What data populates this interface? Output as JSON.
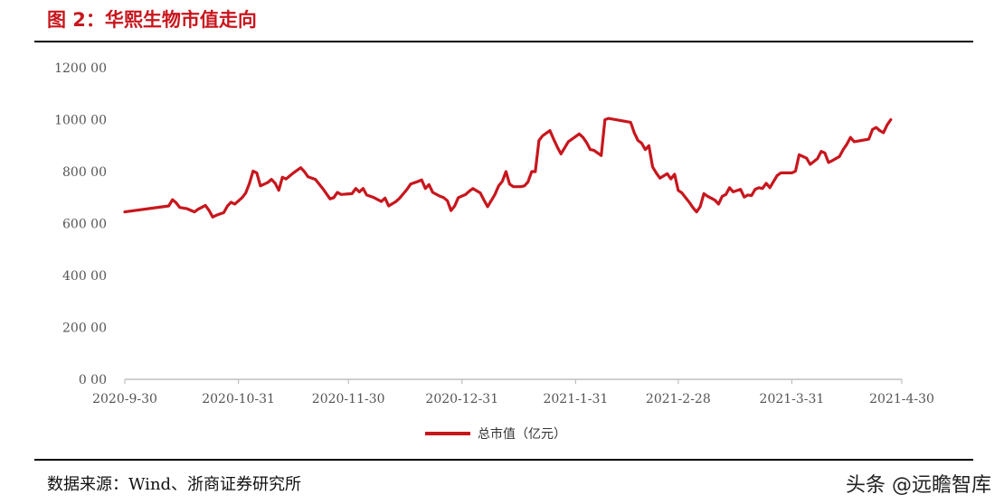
{
  "figure": {
    "title": "图 2：华熙生物市值走向",
    "source": "数据来源：Wind、浙商证券研究所",
    "watermark": "头条 @远瞻智库"
  },
  "colors": {
    "title": "#c8161d",
    "series": "#c8161d",
    "axis": "#bfbfbf",
    "tick_text": "#555555"
  },
  "chart_data": {
    "type": "line",
    "title": "",
    "xlabel": "",
    "ylabel": "",
    "ylim": [
      0,
      1200
    ],
    "yticks": [
      0,
      200,
      400,
      600,
      800,
      1000,
      1200
    ],
    "ytick_labels": [
      "0 00",
      "200 00",
      "400 00",
      "600 00",
      "800 00",
      "1000 00",
      "1200 00"
    ],
    "xticks": [
      "2020-9-30",
      "2020-10-31",
      "2020-11-30",
      "2020-12-31",
      "2021-1-31",
      "2021-2-28",
      "2021-3-31",
      "2021-4-30"
    ],
    "grid": false,
    "legend": "bottom-center",
    "series": [
      {
        "name": "总市值（亿元）",
        "points": [
          [
            "2020-09-30",
            645
          ],
          [
            "2020-10-12",
            668
          ],
          [
            "2020-10-13",
            692
          ],
          [
            "2020-10-14",
            680
          ],
          [
            "2020-10-15",
            662
          ],
          [
            "2020-10-17",
            657
          ],
          [
            "2020-10-19",
            645
          ],
          [
            "2020-10-20",
            655
          ],
          [
            "2020-10-22",
            670
          ],
          [
            "2020-10-23",
            650
          ],
          [
            "2020-10-24",
            625
          ],
          [
            "2020-10-25",
            632
          ],
          [
            "2020-10-27",
            642
          ],
          [
            "2020-10-28",
            668
          ],
          [
            "2020-10-29",
            682
          ],
          [
            "2020-10-30",
            675
          ],
          [
            "2020-11-01",
            700
          ],
          [
            "2020-11-02",
            718
          ],
          [
            "2020-11-03",
            755
          ],
          [
            "2020-11-04",
            802
          ],
          [
            "2020-11-05",
            795
          ],
          [
            "2020-11-06",
            745
          ],
          [
            "2020-11-08",
            758
          ],
          [
            "2020-11-09",
            770
          ],
          [
            "2020-11-10",
            756
          ],
          [
            "2020-11-11",
            728
          ],
          [
            "2020-11-12",
            778
          ],
          [
            "2020-11-13",
            772
          ],
          [
            "2020-11-15",
            795
          ],
          [
            "2020-11-17",
            815
          ],
          [
            "2020-11-18",
            800
          ],
          [
            "2020-11-19",
            780
          ],
          [
            "2020-11-21",
            770
          ],
          [
            "2020-11-23",
            735
          ],
          [
            "2020-11-25",
            695
          ],
          [
            "2020-11-26",
            700
          ],
          [
            "2020-11-27",
            720
          ],
          [
            "2020-11-28",
            712
          ],
          [
            "2020-12-01",
            715
          ],
          [
            "2020-12-02",
            735
          ],
          [
            "2020-12-03",
            722
          ],
          [
            "2020-12-04",
            735
          ],
          [
            "2020-12-05",
            710
          ],
          [
            "2020-12-07",
            700
          ],
          [
            "2020-12-09",
            685
          ],
          [
            "2020-12-10",
            698
          ],
          [
            "2020-12-11",
            668
          ],
          [
            "2020-12-13",
            685
          ],
          [
            "2020-12-14",
            698
          ],
          [
            "2020-12-16",
            732
          ],
          [
            "2020-12-17",
            752
          ],
          [
            "2020-12-19",
            762
          ],
          [
            "2020-12-20",
            768
          ],
          [
            "2020-12-21",
            735
          ],
          [
            "2020-12-22",
            750
          ],
          [
            "2020-12-23",
            720
          ],
          [
            "2020-12-25",
            705
          ],
          [
            "2020-12-26",
            700
          ],
          [
            "2020-12-27",
            688
          ],
          [
            "2020-12-28",
            650
          ],
          [
            "2020-12-29",
            668
          ],
          [
            "2020-12-30",
            700
          ],
          [
            "2021-01-01",
            712
          ],
          [
            "2021-01-02",
            725
          ],
          [
            "2021-01-03",
            735
          ],
          [
            "2021-01-05",
            718
          ],
          [
            "2021-01-06",
            690
          ],
          [
            "2021-01-07",
            665
          ],
          [
            "2021-01-09",
            712
          ],
          [
            "2021-01-10",
            745
          ],
          [
            "2021-01-11",
            762
          ],
          [
            "2021-01-12",
            800
          ],
          [
            "2021-01-13",
            752
          ],
          [
            "2021-01-14",
            742
          ],
          [
            "2021-01-16",
            742
          ],
          [
            "2021-01-17",
            745
          ],
          [
            "2021-01-18",
            760
          ],
          [
            "2021-01-19",
            800
          ],
          [
            "2021-01-20",
            800
          ],
          [
            "2021-01-21",
            920
          ],
          [
            "2021-01-22",
            938
          ],
          [
            "2021-01-24",
            958
          ],
          [
            "2021-01-25",
            925
          ],
          [
            "2021-01-26",
            895
          ],
          [
            "2021-01-27",
            868
          ],
          [
            "2021-01-29",
            915
          ],
          [
            "2021-02-01",
            945
          ],
          [
            "2021-02-02",
            932
          ],
          [
            "2021-02-03",
            912
          ],
          [
            "2021-02-04",
            885
          ],
          [
            "2021-02-05",
            882
          ],
          [
            "2021-02-07",
            862
          ],
          [
            "2021-02-08",
            1000
          ],
          [
            "2021-02-09",
            1005
          ],
          [
            "2021-02-15",
            990
          ],
          [
            "2021-02-16",
            950
          ],
          [
            "2021-02-17",
            920
          ],
          [
            "2021-02-18",
            910
          ],
          [
            "2021-02-19",
            885
          ],
          [
            "2021-02-20",
            900
          ],
          [
            "2021-02-21",
            818
          ],
          [
            "2021-02-22",
            795
          ],
          [
            "2021-02-23",
            775
          ],
          [
            "2021-02-25",
            792
          ],
          [
            "2021-02-26",
            772
          ],
          [
            "2021-02-27",
            790
          ],
          [
            "2021-02-28",
            728
          ],
          [
            "2021-03-01",
            718
          ],
          [
            "2021-03-03",
            682
          ],
          [
            "2021-03-04",
            662
          ],
          [
            "2021-03-05",
            645
          ],
          [
            "2021-03-06",
            665
          ],
          [
            "2021-03-07",
            715
          ],
          [
            "2021-03-08",
            705
          ],
          [
            "2021-03-10",
            690
          ],
          [
            "2021-03-11",
            675
          ],
          [
            "2021-03-12",
            705
          ],
          [
            "2021-03-13",
            712
          ],
          [
            "2021-03-14",
            738
          ],
          [
            "2021-03-15",
            722
          ],
          [
            "2021-03-17",
            732
          ],
          [
            "2021-03-18",
            702
          ],
          [
            "2021-03-19",
            710
          ],
          [
            "2021-03-20",
            708
          ],
          [
            "2021-03-21",
            732
          ],
          [
            "2021-03-22",
            738
          ],
          [
            "2021-03-23",
            735
          ],
          [
            "2021-03-24",
            755
          ],
          [
            "2021-03-25",
            738
          ],
          [
            "2021-03-27",
            785
          ],
          [
            "2021-03-28",
            795
          ],
          [
            "2021-03-31",
            795
          ],
          [
            "2021-04-01",
            802
          ],
          [
            "2021-04-02",
            865
          ],
          [
            "2021-04-04",
            852
          ],
          [
            "2021-04-05",
            828
          ],
          [
            "2021-04-07",
            850
          ],
          [
            "2021-04-08",
            878
          ],
          [
            "2021-04-09",
            872
          ],
          [
            "2021-04-10",
            835
          ],
          [
            "2021-04-11",
            842
          ],
          [
            "2021-04-13",
            858
          ],
          [
            "2021-04-14",
            885
          ],
          [
            "2021-04-15",
            905
          ],
          [
            "2021-04-16",
            932
          ],
          [
            "2021-04-17",
            915
          ],
          [
            "2021-04-19",
            920
          ],
          [
            "2021-04-21",
            925
          ],
          [
            "2021-04-22",
            962
          ],
          [
            "2021-04-23",
            970
          ],
          [
            "2021-04-24",
            958
          ],
          [
            "2021-04-25",
            950
          ],
          [
            "2021-04-26",
            980
          ],
          [
            "2021-04-27",
            1000
          ]
        ]
      }
    ]
  }
}
